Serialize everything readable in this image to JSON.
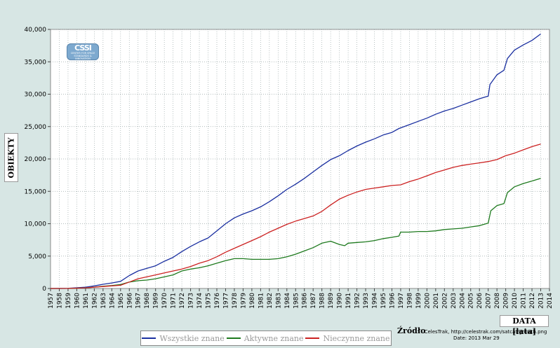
{
  "chart_data": {
    "type": "line",
    "title": "",
    "xlabel": "DATA [lata]",
    "ylabel": "OBIEKTY",
    "xlim": [
      1957,
      2014
    ],
    "ylim": [
      0,
      40000
    ],
    "grid": true,
    "legend_position": "bottom",
    "x_ticks": [
      "1957",
      "1958",
      "1959",
      "1960",
      "1961",
      "1962",
      "1963",
      "1964",
      "1965",
      "1966",
      "1967",
      "1968",
      "1969",
      "1970",
      "1971",
      "1972",
      "1973",
      "1974",
      "1975",
      "1976",
      "1977",
      "1978",
      "1979",
      "1980",
      "1981",
      "1982",
      "1983",
      "1984",
      "1985",
      "1986",
      "1987",
      "1988",
      "1989",
      "1990",
      "1991",
      "1992",
      "1993",
      "1994",
      "1995",
      "1996",
      "1997",
      "1998",
      "1999",
      "2000",
      "2001",
      "2002",
      "2003",
      "2004",
      "2005",
      "2006",
      "2007",
      "2008",
      "2009",
      "2010",
      "2011",
      "2012",
      "2013",
      "2014"
    ],
    "y_ticks": [
      {
        "value": 0,
        "label": "0"
      },
      {
        "value": 5000,
        "label": "5,000"
      },
      {
        "value": 10000,
        "label": "10,000"
      },
      {
        "value": 15000,
        "label": "15,000"
      },
      {
        "value": 20000,
        "label": "20,000"
      },
      {
        "value": 25000,
        "label": "25,000"
      },
      {
        "value": 30000,
        "label": "30,000"
      },
      {
        "value": 35000,
        "label": "35,000"
      },
      {
        "value": 40000,
        "label": "40,000"
      }
    ],
    "series": [
      {
        "name": "Wszystkie znane",
        "color": "#1a2fa0",
        "points": [
          [
            1957,
            0
          ],
          [
            1959,
            20
          ],
          [
            1961,
            200
          ],
          [
            1962,
            400
          ],
          [
            1963,
            650
          ],
          [
            1964,
            850
          ],
          [
            1965,
            1100
          ],
          [
            1966,
            2000
          ],
          [
            1967,
            2700
          ],
          [
            1968,
            3100
          ],
          [
            1969,
            3500
          ],
          [
            1970,
            4200
          ],
          [
            1971,
            4800
          ],
          [
            1972,
            5700
          ],
          [
            1973,
            6500
          ],
          [
            1974,
            7200
          ],
          [
            1975,
            7800
          ],
          [
            1976,
            8900
          ],
          [
            1977,
            10000
          ],
          [
            1978,
            10900
          ],
          [
            1979,
            11500
          ],
          [
            1980,
            12000
          ],
          [
            1981,
            12600
          ],
          [
            1982,
            13400
          ],
          [
            1983,
            14300
          ],
          [
            1984,
            15300
          ],
          [
            1985,
            16100
          ],
          [
            1986,
            17000
          ],
          [
            1987,
            18000
          ],
          [
            1988,
            19000
          ],
          [
            1989,
            19900
          ],
          [
            1990,
            20500
          ],
          [
            1991,
            21300
          ],
          [
            1992,
            22000
          ],
          [
            1993,
            22600
          ],
          [
            1994,
            23100
          ],
          [
            1995,
            23700
          ],
          [
            1996,
            24100
          ],
          [
            1996.8,
            24700
          ],
          [
            1997,
            24800
          ],
          [
            1998,
            25300
          ],
          [
            1999,
            25800
          ],
          [
            2000,
            26300
          ],
          [
            2001,
            26900
          ],
          [
            2002,
            27400
          ],
          [
            2003,
            27800
          ],
          [
            2004,
            28300
          ],
          [
            2005,
            28800
          ],
          [
            2006,
            29300
          ],
          [
            2007,
            29700
          ],
          [
            2007.2,
            31500
          ],
          [
            2008,
            33000
          ],
          [
            2008.8,
            33700
          ],
          [
            2009.2,
            35500
          ],
          [
            2010,
            36800
          ],
          [
            2011,
            37600
          ],
          [
            2012,
            38300
          ],
          [
            2013,
            39300
          ]
        ]
      },
      {
        "name": "Aktywne znane",
        "color": "#1e7a1e",
        "points": [
          [
            1957,
            0
          ],
          [
            1959,
            10
          ],
          [
            1961,
            100
          ],
          [
            1962,
            200
          ],
          [
            1963,
            350
          ],
          [
            1964,
            450
          ],
          [
            1965,
            600
          ],
          [
            1966,
            1000
          ],
          [
            1967,
            1200
          ],
          [
            1968,
            1300
          ],
          [
            1969,
            1500
          ],
          [
            1970,
            1800
          ],
          [
            1971,
            2100
          ],
          [
            1972,
            2700
          ],
          [
            1973,
            3000
          ],
          [
            1974,
            3200
          ],
          [
            1975,
            3500
          ],
          [
            1976,
            3900
          ],
          [
            1977,
            4300
          ],
          [
            1978,
            4600
          ],
          [
            1979,
            4600
          ],
          [
            1980,
            4500
          ],
          [
            1981,
            4500
          ],
          [
            1982,
            4500
          ],
          [
            1983,
            4600
          ],
          [
            1984,
            4900
          ],
          [
            1985,
            5300
          ],
          [
            1986,
            5800
          ],
          [
            1987,
            6300
          ],
          [
            1988,
            7000
          ],
          [
            1989,
            7300
          ],
          [
            1990,
            6800
          ],
          [
            1990.6,
            6600
          ],
          [
            1991,
            7000
          ],
          [
            1992,
            7100
          ],
          [
            1993,
            7200
          ],
          [
            1994,
            7400
          ],
          [
            1995,
            7700
          ],
          [
            1996,
            7900
          ],
          [
            1996.8,
            8100
          ],
          [
            1997,
            8700
          ],
          [
            1998,
            8700
          ],
          [
            1999,
            8800
          ],
          [
            2000,
            8800
          ],
          [
            2001,
            8900
          ],
          [
            2002,
            9100
          ],
          [
            2003,
            9200
          ],
          [
            2004,
            9300
          ],
          [
            2005,
            9500
          ],
          [
            2006,
            9700
          ],
          [
            2007,
            10100
          ],
          [
            2007.3,
            12000
          ],
          [
            2008,
            12800
          ],
          [
            2008.8,
            13100
          ],
          [
            2009.2,
            14800
          ],
          [
            2010,
            15700
          ],
          [
            2011,
            16200
          ],
          [
            2012,
            16600
          ],
          [
            2013,
            17000
          ]
        ]
      },
      {
        "name": "Nieczynne znane",
        "color": "#cc2222",
        "points": [
          [
            1957,
            0
          ],
          [
            1959,
            10
          ],
          [
            1961,
            100
          ],
          [
            1962,
            200
          ],
          [
            1963,
            300
          ],
          [
            1964,
            400
          ],
          [
            1965,
            500
          ],
          [
            1966,
            1000
          ],
          [
            1967,
            1500
          ],
          [
            1968,
            1800
          ],
          [
            1969,
            2100
          ],
          [
            1970,
            2400
          ],
          [
            1971,
            2700
          ],
          [
            1972,
            3000
          ],
          [
            1973,
            3400
          ],
          [
            1974,
            3900
          ],
          [
            1975,
            4300
          ],
          [
            1976,
            4900
          ],
          [
            1977,
            5600
          ],
          [
            1978,
            6200
          ],
          [
            1979,
            6800
          ],
          [
            1980,
            7400
          ],
          [
            1981,
            8000
          ],
          [
            1982,
            8700
          ],
          [
            1983,
            9300
          ],
          [
            1984,
            9900
          ],
          [
            1985,
            10400
          ],
          [
            1986,
            10800
          ],
          [
            1987,
            11200
          ],
          [
            1988,
            11900
          ],
          [
            1989,
            12900
          ],
          [
            1990,
            13800
          ],
          [
            1991,
            14400
          ],
          [
            1992,
            14900
          ],
          [
            1993,
            15300
          ],
          [
            1994,
            15500
          ],
          [
            1995,
            15700
          ],
          [
            1996,
            15900
          ],
          [
            1997,
            16000
          ],
          [
            1998,
            16500
          ],
          [
            1999,
            16900
          ],
          [
            2000,
            17400
          ],
          [
            2001,
            17900
          ],
          [
            2002,
            18300
          ],
          [
            2003,
            18700
          ],
          [
            2004,
            19000
          ],
          [
            2005,
            19200
          ],
          [
            2006,
            19400
          ],
          [
            2007,
            19600
          ],
          [
            2008,
            19900
          ],
          [
            2009,
            20500
          ],
          [
            2010,
            20900
          ],
          [
            2011,
            21400
          ],
          [
            2012,
            21900
          ],
          [
            2013,
            22300
          ]
        ]
      }
    ]
  },
  "legend": {
    "items": [
      {
        "label": "Wszystkie znane",
        "color": "#1a2fa0"
      },
      {
        "label": "Aktywne znane",
        "color": "#1e7a1e"
      },
      {
        "label": "Nieczynne znane",
        "color": "#cc2222"
      }
    ]
  },
  "source": {
    "label": "Źródło",
    "text": ": CelesTrak, http://celestrak.com/satcat/growth.png",
    "date": "Date: 2013 Mar 29"
  },
  "logo": {
    "mark": "CSSI",
    "sub": "CENTER FOR SPACE STANDARDS & INNOVATION"
  }
}
